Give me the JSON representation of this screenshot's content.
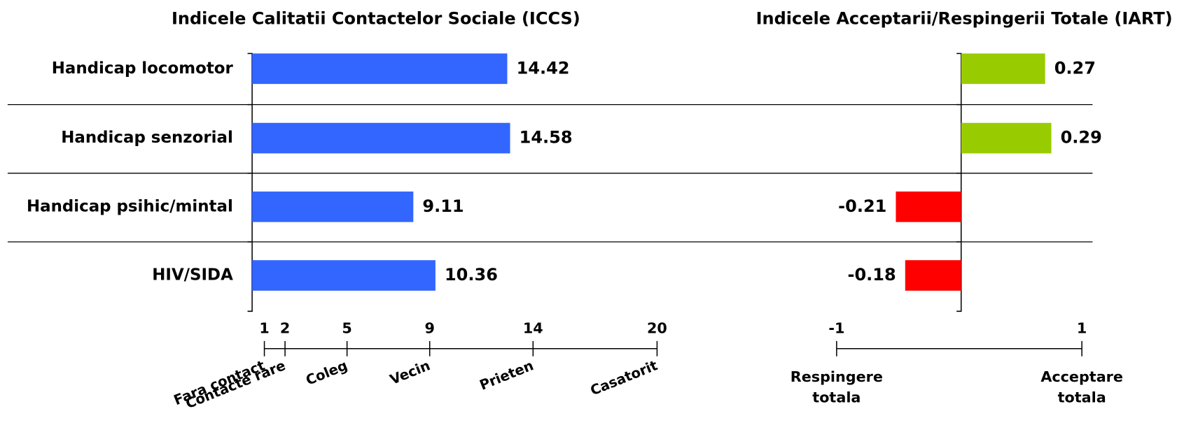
{
  "chart_data": [
    {
      "type": "hbar",
      "title": "Indicele Calitatii Contactelor Sociale (ICCS)",
      "categories": [
        "Handicap locomotor",
        "Handicap senzorial",
        "Handicap psihic/mintal",
        "HIV/SIDA"
      ],
      "values": [
        14.42,
        14.58,
        9.11,
        10.36
      ],
      "color": "#3366ff",
      "xlim": [
        0,
        22
      ],
      "scale": {
        "lim": [
          1,
          20
        ],
        "ticks": [
          1,
          2,
          5,
          9,
          14,
          20
        ],
        "labels": [
          [
            "Fara contact"
          ],
          [
            "Contacte rare"
          ],
          [
            "Coleg"
          ],
          [
            "Vecin"
          ],
          [
            "Prieten"
          ],
          [
            "Casatorit"
          ]
        ],
        "rotated": true
      }
    },
    {
      "type": "hbar",
      "title": "Indicele Acceptarii/Respingerii Totale (IART)",
      "values": [
        0.27,
        0.29,
        -0.21,
        -0.18
      ],
      "positive_color": "#99cc00",
      "negative_color": "#ff0000",
      "xlim": [
        -0.5,
        0.5
      ],
      "scale": {
        "lim": [
          -1,
          1
        ],
        "ticks": [
          -1,
          1
        ],
        "labels": [
          [
            "Respingere",
            "totala"
          ],
          [
            "Acceptare",
            "totala"
          ]
        ],
        "rotated": false
      }
    }
  ]
}
